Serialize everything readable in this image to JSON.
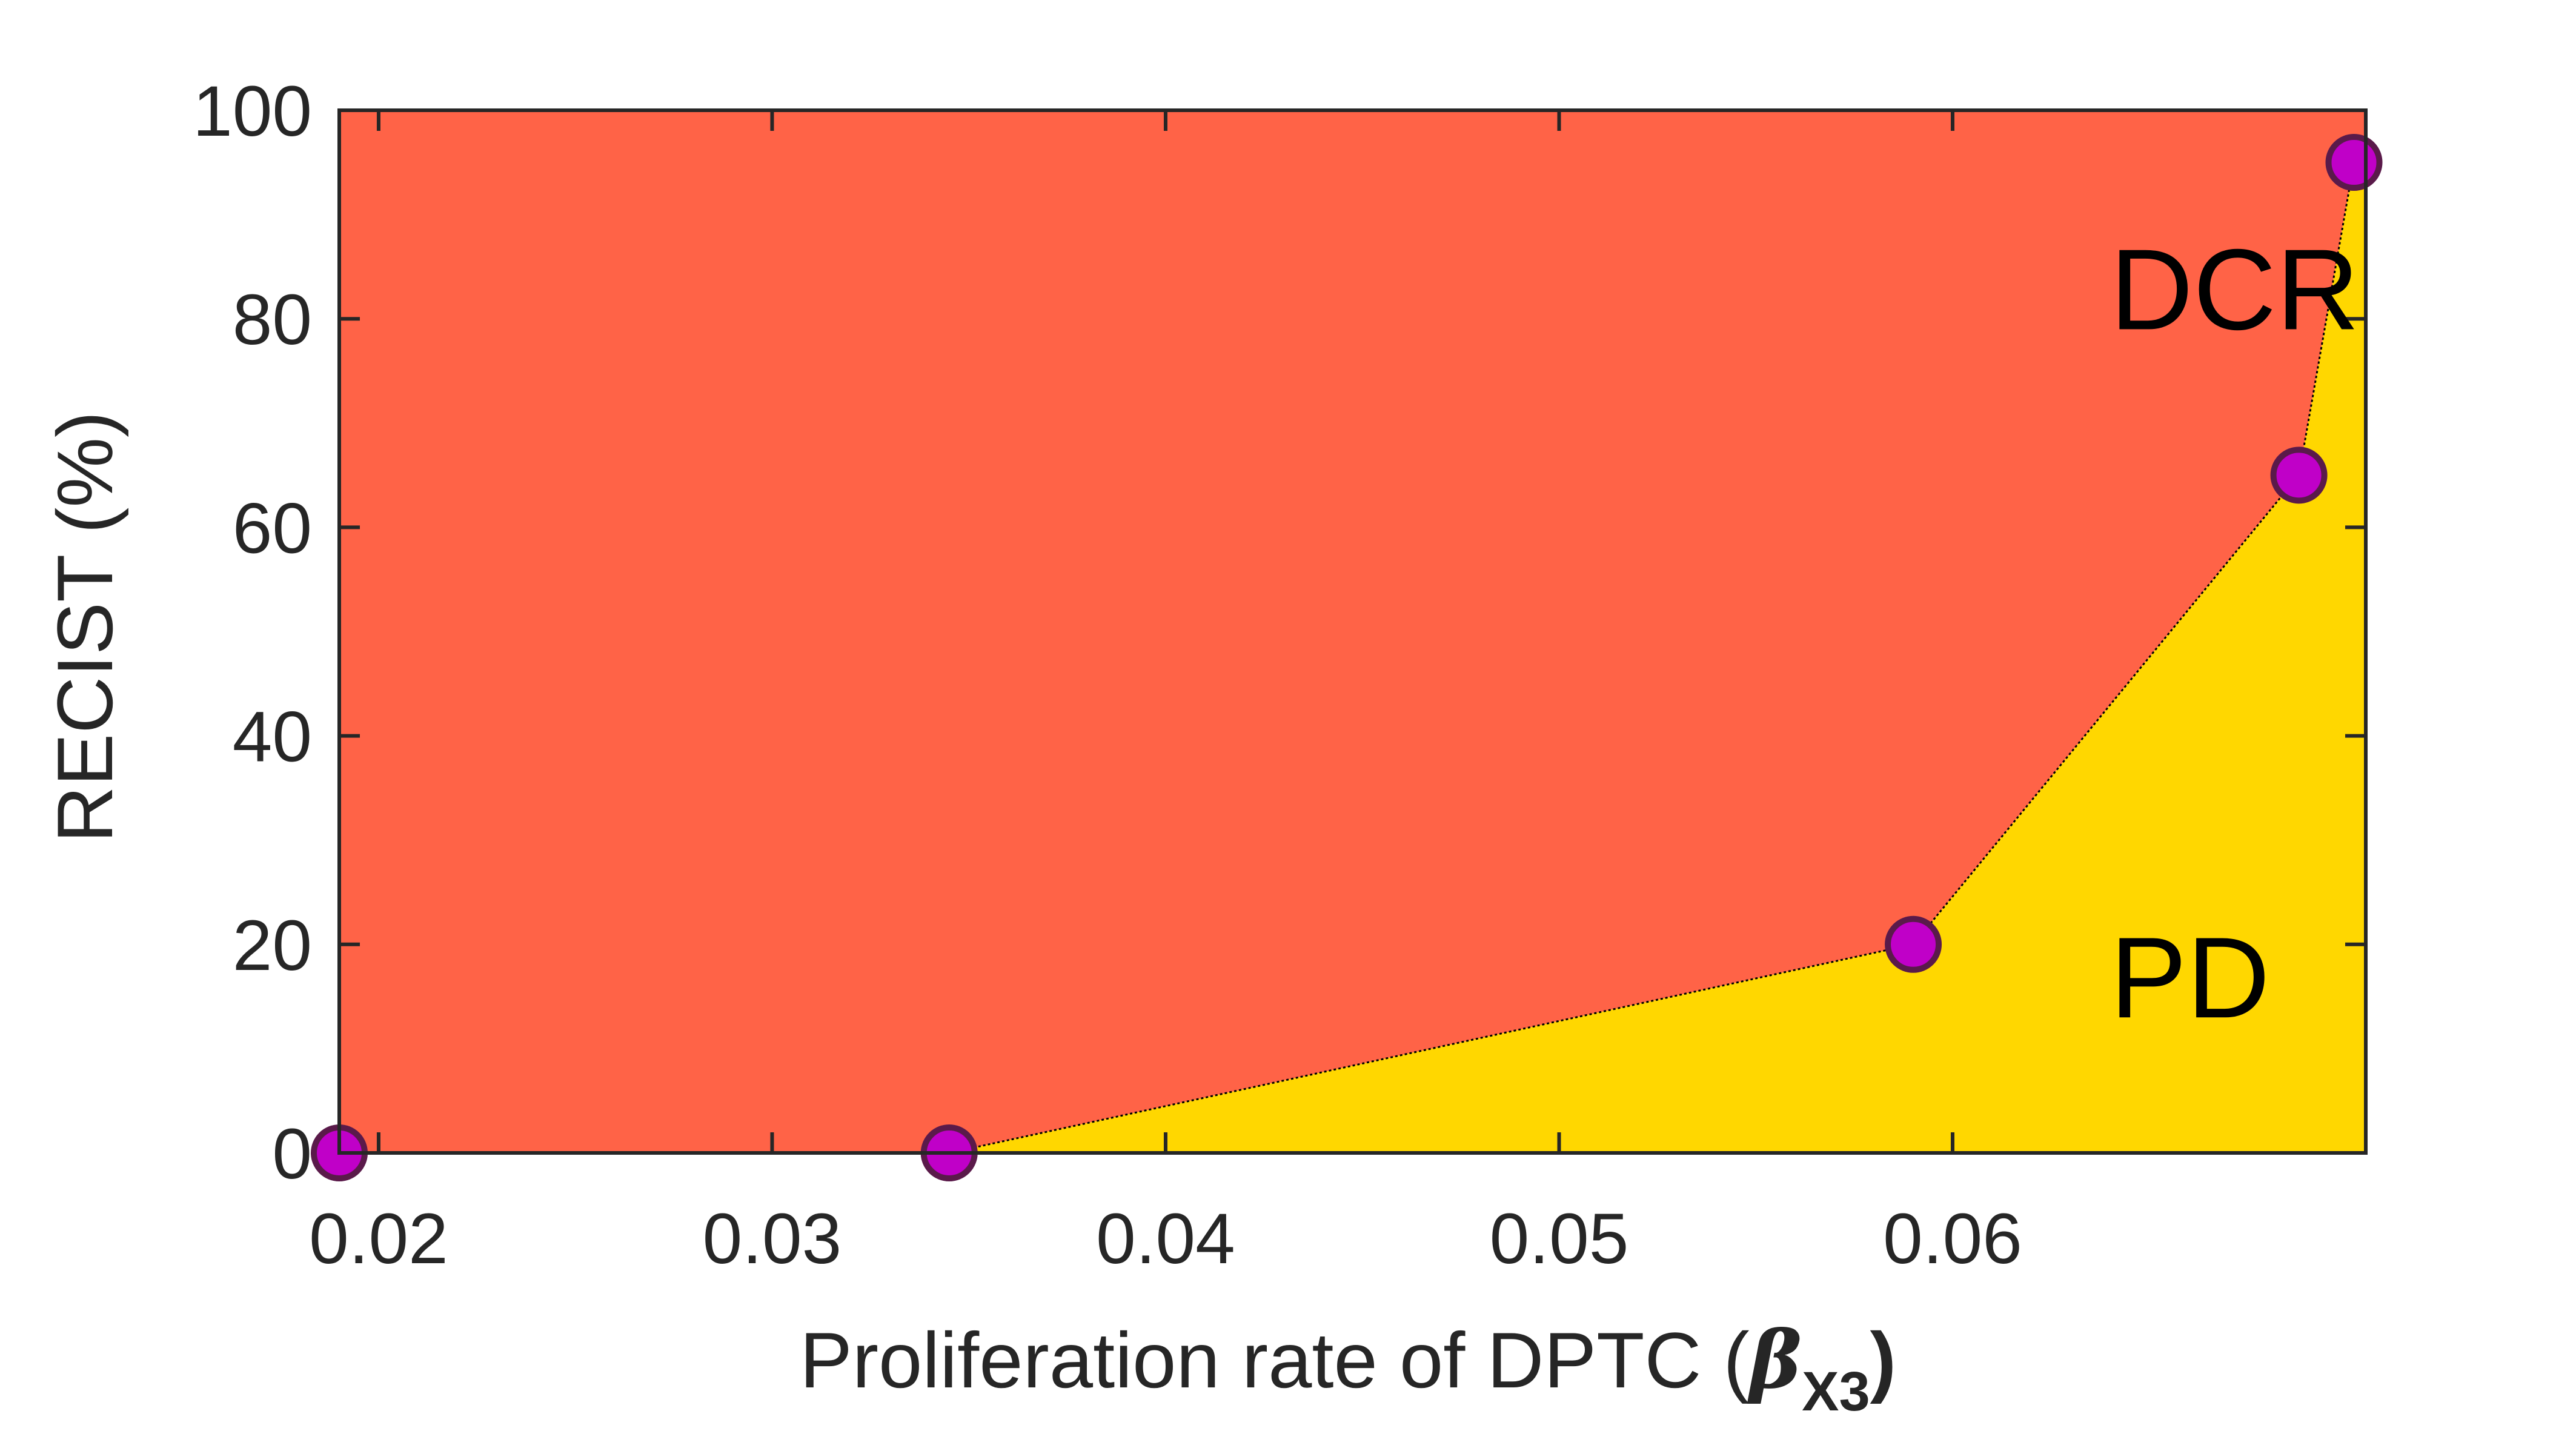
{
  "chart_data": {
    "type": "area",
    "xlabel_text": "Proliferation rate of DPTC (",
    "xlabel_symbol": "β",
    "xlabel_subscript": "X3",
    "xlabel_close": ")",
    "ylabel": "RECIST (%)",
    "xlim": [
      0.019,
      0.0705
    ],
    "ylim": [
      0,
      100
    ],
    "xticks": [
      0.02,
      0.03,
      0.04,
      0.05,
      0.06
    ],
    "xtick_labels": [
      "0.02",
      "0.03",
      "0.04",
      "0.05",
      "0.06"
    ],
    "yticks": [
      0,
      20,
      40,
      60,
      80,
      100
    ],
    "ytick_labels": [
      "0",
      "20",
      "40",
      "60",
      "80",
      "100"
    ],
    "grid": false,
    "boundary": {
      "x": [
        0.019,
        0.0345,
        0.059,
        0.0688,
        0.0702
      ],
      "y": [
        0,
        0,
        20,
        65,
        95
      ]
    },
    "regions": [
      {
        "label": "DCR",
        "position": "above-boundary",
        "color": "#FF6347",
        "label_at": [
          0.064,
          79
        ]
      },
      {
        "label": "PD",
        "position": "below-boundary",
        "color": "#FFD700",
        "label_at": [
          0.064,
          13
        ]
      }
    ],
    "marker_color": "#C000C8",
    "marker_edge_color": "#5A1A4A",
    "boundary_line_color": "#000000"
  }
}
